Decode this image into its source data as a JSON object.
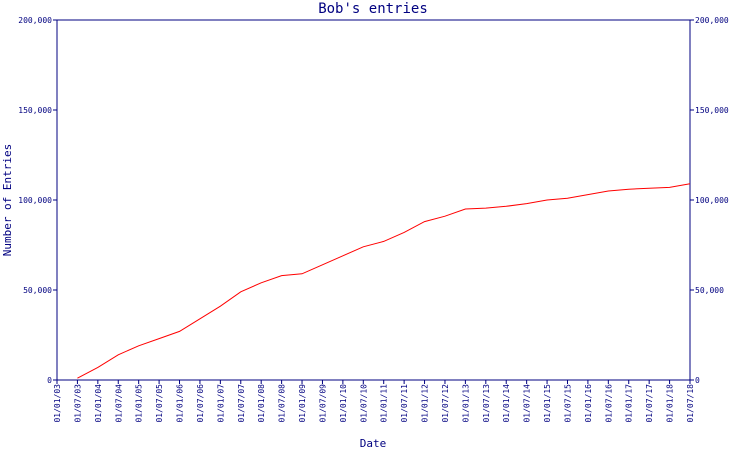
{
  "chart_data": {
    "type": "line",
    "title": "Bob's entries",
    "x_label": "Date",
    "y_label": "Number of Entries",
    "x": [
      "01/07/03",
      "01/01/04",
      "01/07/04",
      "01/01/05",
      "01/07/05",
      "01/01/06",
      "01/07/06",
      "01/01/07",
      "01/07/07",
      "01/01/08",
      "01/07/08",
      "01/01/09",
      "01/07/09",
      "01/01/10",
      "01/07/10",
      "01/01/11",
      "01/07/11",
      "01/01/12",
      "01/07/12",
      "01/01/13",
      "01/07/13",
      "01/01/14",
      "01/07/14",
      "01/01/15",
      "01/07/15",
      "01/01/16",
      "01/07/16",
      "01/01/17",
      "01/07/17",
      "01/01/18",
      "01/07/18"
    ],
    "series": [
      {
        "color": "#ff0000",
        "values": [
          1000,
          7000,
          14000,
          19000,
          23000,
          27000,
          34000,
          41000,
          49000,
          54000,
          58000,
          59000,
          64000,
          69000,
          74000,
          77000,
          82000,
          88000,
          91000,
          95000,
          95500,
          96500,
          98000,
          100000,
          101000,
          103000,
          105000,
          106000,
          106500,
          107000,
          109000
        ]
      }
    ],
    "xlim": [
      "01/01/03",
      "01/07/18"
    ],
    "xticks": [
      "01/01/03",
      "01/07/03",
      "01/01/04",
      "01/07/04",
      "01/01/05",
      "01/07/05",
      "01/01/06",
      "01/07/06",
      "01/01/07",
      "01/07/07",
      "01/01/08",
      "01/07/08",
      "01/01/09",
      "01/07/09",
      "01/01/10",
      "01/07/10",
      "01/01/11",
      "01/07/11",
      "01/01/12",
      "01/07/12",
      "01/01/13",
      "01/07/13",
      "01/01/14",
      "01/07/14",
      "01/01/15",
      "01/07/15",
      "01/01/16",
      "01/07/16",
      "01/01/17",
      "01/07/17",
      "01/01/18",
      "01/07/18"
    ],
    "ylim": [
      0,
      200000
    ],
    "yticks": [
      0,
      {
        "value": 50000,
        "label": "50,000"
      },
      {
        "value": 100000,
        "label": "100,000"
      },
      {
        "value": 150000,
        "label": "150,000"
      },
      {
        "value": 200000,
        "label": "200,000"
      }
    ],
    "y2lim": [
      0,
      200000
    ],
    "y2ticks": [
      0,
      {
        "value": 50000,
        "label": "50,000"
      },
      {
        "value": 100000,
        "label": "100,000"
      },
      {
        "value": 150000,
        "label": "150,000"
      },
      {
        "value": 200000,
        "label": "200,000"
      }
    ],
    "axis_color": "#000080"
  }
}
